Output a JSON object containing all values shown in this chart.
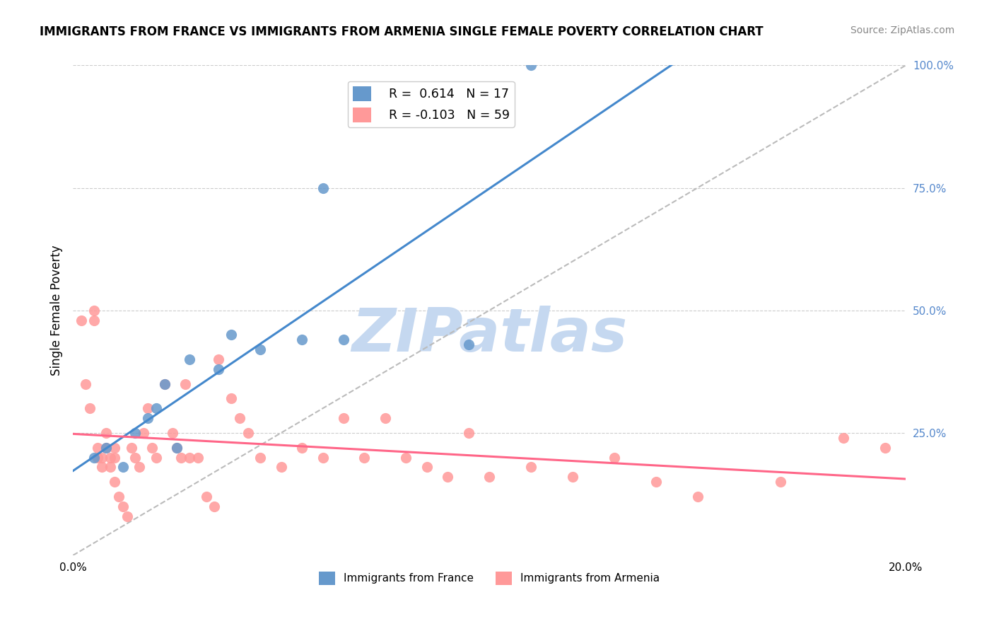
{
  "title": "IMMIGRANTS FROM FRANCE VS IMMIGRANTS FROM ARMENIA SINGLE FEMALE POVERTY CORRELATION CHART",
  "source": "Source: ZipAtlas.com",
  "xlabel": "",
  "ylabel": "Single Female Poverty",
  "xlim": [
    0.0,
    0.2
  ],
  "ylim": [
    0.0,
    1.0
  ],
  "x_ticks": [
    0.0,
    0.05,
    0.1,
    0.15,
    0.2
  ],
  "x_tick_labels": [
    "0.0%",
    "",
    "",
    "",
    "20.0%"
  ],
  "y_ticks_right": [
    0.0,
    0.25,
    0.5,
    0.75,
    1.0
  ],
  "y_tick_labels_right": [
    "",
    "25.0%",
    "50.0%",
    "75.0%",
    "100.0%"
  ],
  "france_color": "#6699CC",
  "armenia_color": "#FF9999",
  "france_line_color": "#4488CC",
  "armenia_line_color": "#FF6688",
  "france_R": 0.614,
  "france_N": 17,
  "armenia_R": -0.103,
  "armenia_N": 59,
  "background_color": "#FFFFFF",
  "watermark": "ZIPatlas",
  "watermark_color": "#C5D8F0",
  "grid_color": "#CCCCCC",
  "right_axis_color": "#5588CC",
  "france_points_x": [
    0.005,
    0.008,
    0.012,
    0.015,
    0.018,
    0.02,
    0.022,
    0.025,
    0.028,
    0.035,
    0.038,
    0.045,
    0.055,
    0.06,
    0.065,
    0.095,
    0.11
  ],
  "france_points_y": [
    0.2,
    0.22,
    0.18,
    0.25,
    0.28,
    0.3,
    0.35,
    0.22,
    0.4,
    0.38,
    0.45,
    0.42,
    0.44,
    0.75,
    0.44,
    0.43,
    1.0
  ],
  "armenia_points_x": [
    0.002,
    0.003,
    0.004,
    0.005,
    0.005,
    0.006,
    0.006,
    0.007,
    0.007,
    0.008,
    0.008,
    0.009,
    0.009,
    0.01,
    0.01,
    0.01,
    0.011,
    0.012,
    0.013,
    0.014,
    0.015,
    0.016,
    0.017,
    0.018,
    0.019,
    0.02,
    0.022,
    0.024,
    0.025,
    0.026,
    0.027,
    0.028,
    0.03,
    0.032,
    0.034,
    0.035,
    0.038,
    0.04,
    0.042,
    0.045,
    0.05,
    0.055,
    0.06,
    0.065,
    0.07,
    0.075,
    0.08,
    0.085,
    0.09,
    0.095,
    0.1,
    0.11,
    0.12,
    0.13,
    0.14,
    0.15,
    0.17,
    0.185,
    0.195
  ],
  "armenia_points_y": [
    0.48,
    0.35,
    0.3,
    0.5,
    0.48,
    0.2,
    0.22,
    0.18,
    0.2,
    0.22,
    0.25,
    0.2,
    0.18,
    0.22,
    0.2,
    0.15,
    0.12,
    0.1,
    0.08,
    0.22,
    0.2,
    0.18,
    0.25,
    0.3,
    0.22,
    0.2,
    0.35,
    0.25,
    0.22,
    0.2,
    0.35,
    0.2,
    0.2,
    0.12,
    0.1,
    0.4,
    0.32,
    0.28,
    0.25,
    0.2,
    0.18,
    0.22,
    0.2,
    0.28,
    0.2,
    0.28,
    0.2,
    0.18,
    0.16,
    0.25,
    0.16,
    0.18,
    0.16,
    0.2,
    0.15,
    0.12,
    0.15,
    0.24,
    0.22
  ]
}
